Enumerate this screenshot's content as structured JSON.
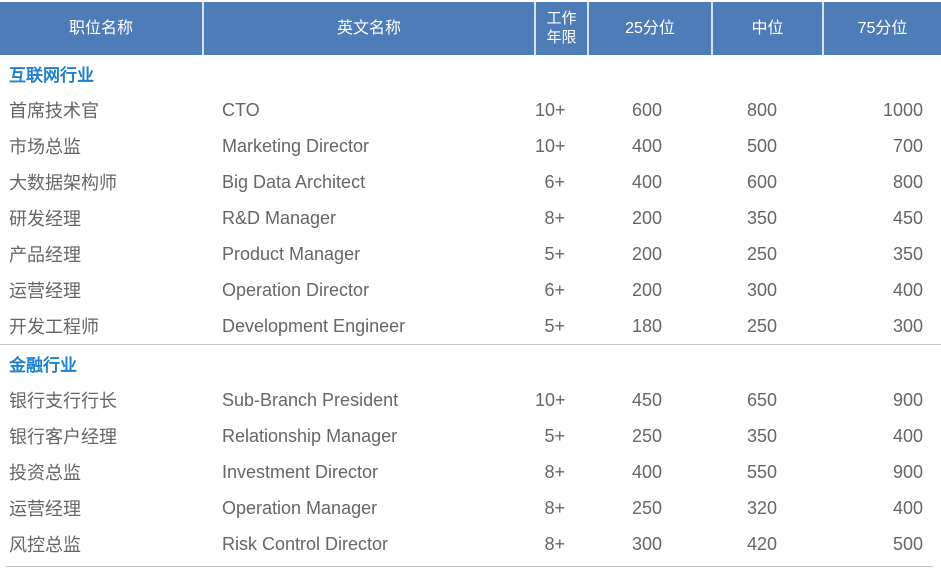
{
  "colors": {
    "header_bg": "#4e7cb7",
    "header_text": "#ffffff",
    "header_divider": "#d9e2f0",
    "section_title_text": "#1e82ce",
    "body_text": "#666666",
    "divider_line": "#c6c6c6"
  },
  "table": {
    "columns": [
      {
        "key": "position",
        "label": "职位名称"
      },
      {
        "key": "english",
        "label": "英文名称"
      },
      {
        "key": "years",
        "label": "工作年限"
      },
      {
        "key": "p25",
        "label": "25分位"
      },
      {
        "key": "median",
        "label": "中位"
      },
      {
        "key": "p75",
        "label": "75分位"
      }
    ],
    "sections": [
      {
        "title": "互联网行业",
        "rows": [
          {
            "position": "首席技术官",
            "english": "CTO",
            "years": "10+",
            "p25": "600",
            "median": "800",
            "p75": "1000"
          },
          {
            "position": "市场总监",
            "english": "Marketing Director",
            "years": "10+",
            "p25": "400",
            "median": "500",
            "p75": "700"
          },
          {
            "position": "大数据架构师",
            "english": "Big Data Architect",
            "years": "6+",
            "p25": "400",
            "median": "600",
            "p75": "800"
          },
          {
            "position": "研发经理",
            "english": "R&D Manager",
            "years": "8+",
            "p25": "200",
            "median": "350",
            "p75": "450"
          },
          {
            "position": "产品经理",
            "english": "Product Manager",
            "years": "5+",
            "p25": "200",
            "median": "250",
            "p75": "350"
          },
          {
            "position": "运营经理",
            "english": "Operation Director",
            "years": "6+",
            "p25": "200",
            "median": "300",
            "p75": "400"
          },
          {
            "position": "开发工程师",
            "english": "Development Engineer",
            "years": "5+",
            "p25": "180",
            "median": "250",
            "p75": "300"
          }
        ]
      },
      {
        "title": "金融行业",
        "rows": [
          {
            "position": "银行支行行长",
            "english": "Sub-Branch President",
            "years": "10+",
            "p25": "450",
            "median": "650",
            "p75": "900"
          },
          {
            "position": "银行客户经理",
            "english": "Relationship Manager",
            "years": "5+",
            "p25": "250",
            "median": "350",
            "p75": "400"
          },
          {
            "position": "投资总监",
            "english": "Investment Director",
            "years": "8+",
            "p25": "400",
            "median": "550",
            "p75": "900"
          },
          {
            "position": "运营经理",
            "english": "Operation Manager",
            "years": "8+",
            "p25": "250",
            "median": "320",
            "p75": "400"
          },
          {
            "position": "风控总监",
            "english": "Risk Control Director",
            "years": "8+",
            "p25": "300",
            "median": "420",
            "p75": "500"
          }
        ]
      }
    ]
  }
}
